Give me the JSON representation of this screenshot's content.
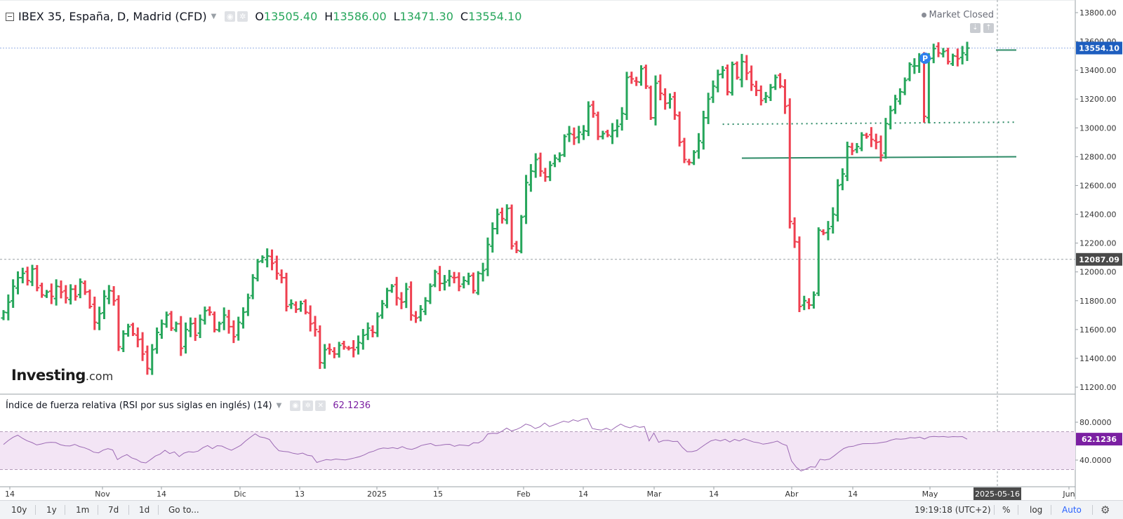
{
  "header": {
    "symbol": "IBEX 35, España, D, Madrid (CFD)",
    "o_label": "O",
    "o_value": "13505.40",
    "h_label": "H",
    "h_value": "13586.00",
    "l_label": "L",
    "l_value": "13471.30",
    "c_label": "C",
    "c_value": "13554.10",
    "market_status": "Market Closed"
  },
  "rsi_panel": {
    "title": "Índice de fuerza relativa (RSI por sus siglas en inglés) (14)",
    "value": "62.1236"
  },
  "logo": {
    "brand": "Investing",
    "suffix": ".com"
  },
  "bottom_bar": {
    "ranges": [
      "10y",
      "1y",
      "1m",
      "7d",
      "1d"
    ],
    "goto": "Go to...",
    "time": "19:19:18 (UTC+2)",
    "percent": "%",
    "log": "log",
    "auto": "Auto"
  },
  "colors": {
    "up": "#26a65b",
    "down": "#ef4050",
    "line": "#2e8b67",
    "rsi": "#9c6ab4",
    "rsi_band": "#f3e5f5",
    "price_tag": "#1e5ebf",
    "crosshair_tag": "#4a4a4a"
  },
  "chart_data": [
    {
      "type": "ohlc",
      "title": "IBEX 35, España, D, Madrid (CFD)",
      "ylim": [
        11150,
        13850
      ],
      "y_ticks": [
        "13800.00",
        "13600.00",
        "13400.00",
        "13200.00",
        "13000.00",
        "12800.00",
        "12600.00",
        "12400.00",
        "12200.00",
        "12000.00",
        "11800.00",
        "11600.00",
        "11400.00",
        "11200.00"
      ],
      "x_ticks": [
        "14",
        "Nov",
        "14",
        "Dic",
        "13",
        "2025",
        "15",
        "Feb",
        "14",
        "Mar",
        "14",
        "Abr",
        "14",
        "May",
        "Jun"
      ],
      "crosshair_date": "2025-05-16",
      "last_price_label": "13554.10",
      "crosshair_price_label": "12087.09",
      "annotations": {
        "support_lines": [
          12790,
          13540
        ],
        "dotted_line": 13025,
        "marker": "P"
      },
      "closes": [
        11720,
        11790,
        11900,
        11960,
        11990,
        11940,
        12020,
        11890,
        11840,
        11860,
        11830,
        11900,
        11860,
        11820,
        11880,
        11830,
        11930,
        11860,
        11760,
        11650,
        11710,
        11830,
        11870,
        11800,
        11480,
        11570,
        11620,
        11570,
        11530,
        11430,
        11330,
        11460,
        11580,
        11640,
        11700,
        11610,
        11640,
        11470,
        11600,
        11640,
        11560,
        11670,
        11730,
        11720,
        11600,
        11640,
        11700,
        11620,
        11550,
        11650,
        11720,
        11820,
        11960,
        12070,
        12100,
        12110,
        12060,
        11990,
        11960,
        11760,
        11780,
        11740,
        11780,
        11720,
        11640,
        11600,
        11370,
        11460,
        11460,
        11430,
        11490,
        11480,
        11470,
        11460,
        11510,
        11560,
        11610,
        11580,
        11690,
        11780,
        11870,
        11900,
        11820,
        11790,
        11880,
        11700,
        11680,
        11740,
        11800,
        11900,
        12000,
        11920,
        11930,
        11970,
        11960,
        11900,
        11940,
        11970,
        11870,
        11990,
        12010,
        12190,
        12300,
        12400,
        12370,
        12440,
        12180,
        12150,
        12380,
        12620,
        12700,
        12780,
        12700,
        12660,
        12740,
        12790,
        12810,
        12940,
        12960,
        12930,
        12970,
        12980,
        13150,
        13100,
        12940,
        12960,
        12950,
        12980,
        13010,
        13100,
        13350,
        13340,
        13320,
        13410,
        13290,
        13070,
        13310,
        13240,
        13170,
        13200,
        13090,
        12900,
        12780,
        12760,
        12830,
        12910,
        13070,
        13200,
        13290,
        13370,
        13400,
        13250,
        13440,
        13350,
        13460,
        13380,
        13300,
        13260,
        13190,
        13220,
        13280,
        13350,
        13290,
        13150,
        12350,
        12210,
        11760,
        11800,
        11770,
        11840,
        12290,
        12270,
        12300,
        12400,
        12600,
        12680,
        12870,
        12840,
        12870,
        12950,
        12940,
        12920,
        12900,
        12810,
        13030,
        13120,
        13200,
        13250,
        13330,
        13440,
        13430,
        13470,
        13080,
        13480,
        13550,
        13520,
        13530,
        13460,
        13500,
        13480,
        13520,
        13554
      ]
    },
    {
      "type": "line",
      "title": "Índice de fuerza relativa (RSI por sus siglas en inglés) (14)",
      "ylim": [
        25,
        85
      ],
      "y_ticks": [
        "80.0000",
        "40.0000"
      ],
      "band": [
        30,
        70
      ],
      "last_value_label": "62.1236",
      "values": [
        56.5,
        60.7,
        64.0,
        66.3,
        63.0,
        60.3,
        58.5,
        56.0,
        57.0,
        58.4,
        58.8,
        58.5,
        56.2,
        55.1,
        54.9,
        56.6,
        54.4,
        53.1,
        51.2,
        48.4,
        47.6,
        50.5,
        52.1,
        50.7,
        40.5,
        43.6,
        45.8,
        42.4,
        40.7,
        37.8,
        37.0,
        40.6,
        44.3,
        46.4,
        50.4,
        46.9,
        48.7,
        43.7,
        47.3,
        48.9,
        48.3,
        49.5,
        53.1,
        55.3,
        52.1,
        55.2,
        54.8,
        52.4,
        50.4,
        52.9,
        55.7,
        60.2,
        64.1,
        67.7,
        64.5,
        63.6,
        61.8,
        55.1,
        49.9,
        49.2,
        48.7,
        47.2,
        46.3,
        47.4,
        45.1,
        44.4,
        37.5,
        39.1,
        40.5,
        40.0,
        41.1,
        40.6,
        40.2,
        41.2,
        42.4,
        43.6,
        45.5,
        48.1,
        49.5,
        51.7,
        52.8,
        52.3,
        53.1,
        52.1,
        54.2,
        52.0,
        51.3,
        53.0,
        55.4,
        56.6,
        57.5,
        55.2,
        55.6,
        56.5,
        56.7,
        54.5,
        56.0,
        55.6,
        55.1,
        58.3,
        58.1,
        60.9,
        67.6,
        68.3,
        68.1,
        70.5,
        73.8,
        70.8,
        72.3,
        74.6,
        78.0,
        76.6,
        73.3,
        75.2,
        79.2,
        75.4,
        77.1,
        79.1,
        81.1,
        79.9,
        82.6,
        81.0,
        83.2,
        84.0,
        73.5,
        72.3,
        71.7,
        73.6,
        71.4,
        75.0,
        78.0,
        75.5,
        74.1,
        76.3,
        74.6,
        75.4,
        60.2,
        68.6,
        58.8,
        60.7,
        60.8,
        59.6,
        59.8,
        53.4,
        48.9,
        48.9,
        50.1,
        53.6,
        57.1,
        60.3,
        61.6,
        60.2,
        62.0,
        59.1,
        61.9,
        60.2,
        62.6,
        60.9,
        59.1,
        58.4,
        56.8,
        57.6,
        58.7,
        60.1,
        57.2,
        55.3,
        39.1,
        32.6,
        28.5,
        30.4,
        33.0,
        32.5,
        40.8,
        40.1,
        41.0,
        44.6,
        48.6,
        52.2,
        54.1,
        54.6,
        56.2,
        57.3,
        57.4,
        57.5,
        57.8,
        58.6,
        59.3,
        61.2,
        62.4,
        62.1,
        62.5,
        63.8,
        63.3,
        64.2,
        62.3,
        64.5,
        65.0,
        64.6,
        64.9,
        64.3,
        64.8,
        64.7,
        64.8,
        62.1
      ]
    }
  ]
}
